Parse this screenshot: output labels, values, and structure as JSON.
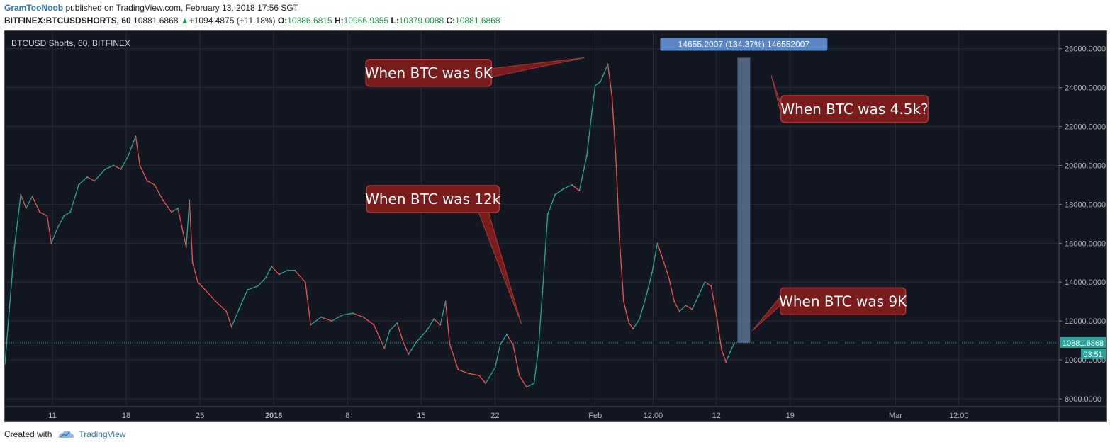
{
  "header": {
    "author": "GramTooNoob",
    "published_text": "published on TradingView.com, February 13, 2018 17:56 SGT",
    "symbol": "BITFINEX:BTCUSDSHORTS, 60",
    "last": "10881.6868",
    "change_arrow": "▲",
    "change": "+1094.4875 (+11.18%)",
    "o_label": "O:",
    "o_value": "10386.6815",
    "h_label": "H:",
    "h_value": "10966.9355",
    "l_label": "L:",
    "l_value": "10379.0088",
    "c_label": "C:",
    "c_value": "10881.6868"
  },
  "footer": {
    "created_with": "Created with",
    "brand": "TradingView"
  },
  "chart_data": {
    "type": "line",
    "title": "BTCUSD Shorts, 60, BITFINEX",
    "background": "#131722",
    "grid": true,
    "up_color": "#26a69a",
    "down_color": "#ef5350",
    "ylim": [
      7600,
      26900
    ],
    "y_ticks": [
      "8000.0000",
      "10000.0000",
      "12000.0000",
      "14000.0000",
      "16000.0000",
      "18000.0000",
      "20000.0000",
      "22000.0000",
      "24000.0000",
      "26000.0000"
    ],
    "y_tick_values": [
      8000,
      10000,
      12000,
      14000,
      16000,
      18000,
      20000,
      22000,
      24000,
      26000
    ],
    "x_ticks": [
      "11",
      "18",
      "25",
      "2018",
      "8",
      "15",
      "22",
      "Feb",
      "12:00",
      "12",
      "19",
      "Mar",
      "12:00"
    ],
    "x_tick_values": [
      4.5,
      11.5,
      18.5,
      25.5,
      32.5,
      39.5,
      46.5,
      56,
      61.5,
      67.5,
      74.5,
      84.5,
      90.5
    ],
    "xlim": [
      0,
      100
    ],
    "series": [
      {
        "values": [
          [
            0.0,
            9800
          ],
          [
            0.4,
            12500
          ],
          [
            0.9,
            15800
          ],
          [
            1.5,
            18500
          ],
          [
            2.0,
            17800
          ],
          [
            2.6,
            18400
          ],
          [
            3.3,
            17600
          ],
          [
            4.0,
            17400
          ],
          [
            4.4,
            16000
          ],
          [
            5.0,
            16800
          ],
          [
            5.6,
            17400
          ],
          [
            6.2,
            17600
          ],
          [
            7.0,
            19000
          ],
          [
            7.8,
            19400
          ],
          [
            8.5,
            19200
          ],
          [
            9.5,
            19800
          ],
          [
            10.3,
            20000
          ],
          [
            11.0,
            19800
          ],
          [
            11.7,
            20500
          ],
          [
            12.4,
            21500
          ],
          [
            12.8,
            20000
          ],
          [
            13.5,
            19200
          ],
          [
            14.2,
            19000
          ],
          [
            15.0,
            18200
          ],
          [
            15.8,
            17600
          ],
          [
            16.4,
            17800
          ],
          [
            17.2,
            15800
          ],
          [
            17.5,
            18200
          ],
          [
            17.8,
            15000
          ],
          [
            18.3,
            14000
          ],
          [
            19.0,
            13600
          ],
          [
            20.0,
            13000
          ],
          [
            21.0,
            12500
          ],
          [
            21.5,
            11700
          ],
          [
            22.2,
            12600
          ],
          [
            23.0,
            13600
          ],
          [
            24.0,
            13800
          ],
          [
            24.7,
            14200
          ],
          [
            25.3,
            14800
          ],
          [
            26.0,
            14400
          ],
          [
            26.8,
            14600
          ],
          [
            27.5,
            14600
          ],
          [
            28.5,
            14000
          ],
          [
            29.0,
            11800
          ],
          [
            30.0,
            12200
          ],
          [
            31.0,
            12000
          ],
          [
            32.0,
            12300
          ],
          [
            33.0,
            12400
          ],
          [
            34.0,
            12200
          ],
          [
            35.0,
            11800
          ],
          [
            35.5,
            11200
          ],
          [
            36.0,
            10600
          ],
          [
            36.5,
            11500
          ],
          [
            37.2,
            11900
          ],
          [
            37.8,
            10900
          ],
          [
            38.3,
            10300
          ],
          [
            39.0,
            10900
          ],
          [
            40.0,
            11500
          ],
          [
            40.7,
            12100
          ],
          [
            41.3,
            11800
          ],
          [
            41.8,
            13000
          ],
          [
            42.2,
            10800
          ],
          [
            43.0,
            9500
          ],
          [
            44.0,
            9300
          ],
          [
            45.0,
            9200
          ],
          [
            45.6,
            8800
          ],
          [
            46.5,
            9600
          ],
          [
            47.0,
            10800
          ],
          [
            47.6,
            11300
          ],
          [
            48.2,
            10800
          ],
          [
            48.8,
            9200
          ],
          [
            49.5,
            8600
          ],
          [
            50.2,
            8800
          ],
          [
            50.6,
            10500
          ],
          [
            51.0,
            13500
          ],
          [
            51.5,
            17500
          ],
          [
            52.2,
            18500
          ],
          [
            53.0,
            18800
          ],
          [
            53.8,
            19000
          ],
          [
            54.5,
            18700
          ],
          [
            55.2,
            20500
          ],
          [
            55.7,
            22800
          ],
          [
            56.0,
            24100
          ],
          [
            56.5,
            24300
          ],
          [
            57.2,
            25200
          ],
          [
            57.6,
            23500
          ],
          [
            58.0,
            20000
          ],
          [
            58.3,
            16200
          ],
          [
            58.7,
            13000
          ],
          [
            59.2,
            11900
          ],
          [
            59.6,
            11600
          ],
          [
            60.2,
            12100
          ],
          [
            60.8,
            13200
          ],
          [
            61.4,
            14500
          ],
          [
            61.9,
            16000
          ],
          [
            62.4,
            15200
          ],
          [
            63.0,
            14200
          ],
          [
            63.5,
            13000
          ],
          [
            64.0,
            12500
          ],
          [
            64.6,
            12800
          ],
          [
            65.2,
            12600
          ],
          [
            65.8,
            13300
          ],
          [
            66.4,
            14000
          ],
          [
            67.0,
            13800
          ],
          [
            67.5,
            12300
          ],
          [
            68.0,
            10500
          ],
          [
            68.4,
            9900
          ],
          [
            68.8,
            10400
          ],
          [
            69.2,
            10881
          ]
        ]
      }
    ],
    "current_price_label": "10881.6868",
    "countdown_label": "03:51",
    "current_value": 10881.6868,
    "measure": {
      "label": "14655.2007 (134.37%) 146552007",
      "x_from": 69.5,
      "x_to": 70.7,
      "y_from": 10881,
      "y_to": 25536,
      "color": "#5b7290"
    },
    "annotations": [
      {
        "text": "When BTC was 6K",
        "x": 40.2,
        "y": 24760,
        "tip_x": 55.0,
        "tip_y": 25540
      },
      {
        "text": "When BTC was 4.5k?",
        "x": 80.6,
        "y": 22900,
        "tip_x": 72.7,
        "tip_y": 24630
      },
      {
        "text": "When BTC was 12k",
        "x": 40.6,
        "y": 18270,
        "tip_x": 49.0,
        "tip_y": 11850
      },
      {
        "text": "When BTC was 9K",
        "x": 79.5,
        "y": 13010,
        "tip_x": 70.9,
        "tip_y": 11500
      }
    ]
  }
}
